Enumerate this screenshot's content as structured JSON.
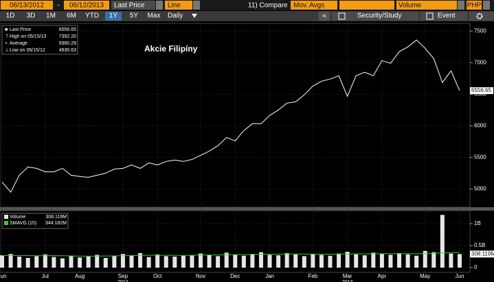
{
  "toolbar": {
    "start_date": "06/13/2012",
    "end_date": "06/12/2013",
    "field": "Last Price",
    "style": "Line",
    "compare": "11) Compare",
    "mov_avgs": "Mov. Avgs",
    "lower": "Volume",
    "currency": "PHP",
    "periods": [
      "1D",
      "3D",
      "1M",
      "6M",
      "YTD",
      "1Y",
      "5Y",
      "Max"
    ],
    "active_period_index": 5,
    "frequency": "Daily",
    "study": "Security/Study",
    "event": "Event"
  },
  "chart_data": [
    {
      "type": "line",
      "title": "Akcie Filipíny",
      "series": [
        {
          "name": "Last Price",
          "color": "#ffffff",
          "values": [
            5110,
            4950,
            5217,
            5348,
            5326,
            5272,
            5272,
            5326,
            5217,
            5196,
            5185,
            5217,
            5250,
            5315,
            5326,
            5380,
            5326,
            5413,
            5380,
            5435,
            5457,
            5435,
            5467,
            5533,
            5598,
            5685,
            5815,
            5761,
            5924,
            6033,
            6033,
            6163,
            6250,
            6359,
            6380,
            6489,
            6630,
            6707,
            6739,
            6793,
            6467,
            6793,
            6848,
            6793,
            7033,
            6989,
            7174,
            7250,
            7359,
            7228,
            7065,
            6685,
            6870,
            6556.65
          ]
        }
      ],
      "last_price": 6556.65,
      "stats": [
        {
          "label": "High on 05/15/13",
          "value": 7392.2,
          "value_label": "7392.20"
        },
        {
          "label": "Average",
          "value": 5960.29
        },
        {
          "label": "Low on 06/15/12",
          "value": 4930.63
        }
      ],
      "ylim": [
        4700,
        7590
      ],
      "yticks": [
        5000,
        5500,
        6000,
        6500,
        7000,
        7500
      ],
      "grid": true
    },
    {
      "type": "bar",
      "categories": [
        "Jun",
        null,
        null,
        null,
        null,
        "Jul",
        null,
        null,
        null,
        "Aug",
        null,
        null,
        null,
        null,
        "Sep",
        null,
        null,
        null,
        "Oct",
        null,
        null,
        null,
        null,
        "Nov",
        null,
        null,
        null,
        "Dec",
        null,
        null,
        null,
        "Jan",
        null,
        null,
        null,
        null,
        "Feb",
        null,
        null,
        null,
        "Mar",
        null,
        null,
        null,
        "Apr",
        null,
        null,
        null,
        null,
        "May",
        null,
        null,
        null,
        "Jun"
      ],
      "years": [
        "2012",
        "2013"
      ],
      "series": [
        {
          "name": "Volume",
          "color": "#e6e6e6",
          "values": [
            280000000,
            310000000,
            250000000,
            220000000,
            260000000,
            300000000,
            240000000,
            210000000,
            270000000,
            230000000,
            250000000,
            290000000,
            220000000,
            260000000,
            310000000,
            280000000,
            330000000,
            240000000,
            300000000,
            260000000,
            250000000,
            270000000,
            280000000,
            320000000,
            290000000,
            260000000,
            340000000,
            300000000,
            270000000,
            310000000,
            350000000,
            290000000,
            280000000,
            330000000,
            300000000,
            260000000,
            310000000,
            290000000,
            270000000,
            320000000,
            360000000,
            300000000,
            280000000,
            340000000,
            310000000,
            290000000,
            330000000,
            300000000,
            270000000,
            380000000,
            350000000,
            1200000000,
            320000000,
            308119000
          ]
        },
        {
          "name": "SMAVG (15)",
          "color": "#33cc33",
          "values": [
            270000000,
            275000000,
            278000000,
            272000000,
            268000000,
            270000000,
            272000000,
            268000000,
            265000000,
            262000000,
            260000000,
            262000000,
            264000000,
            266000000,
            270000000,
            274000000,
            278000000,
            280000000,
            282000000,
            280000000,
            279000000,
            278000000,
            280000000,
            285000000,
            288000000,
            288000000,
            292000000,
            295000000,
            295000000,
            298000000,
            302000000,
            304000000,
            305000000,
            308000000,
            310000000,
            308000000,
            306000000,
            306000000,
            305000000,
            306000000,
            310000000,
            312000000,
            312000000,
            314000000,
            316000000,
            315000000,
            315000000,
            316000000,
            314000000,
            320000000,
            325000000,
            335000000,
            340000000,
            344182000
          ]
        }
      ],
      "last_values": [
        {
          "value": 308119000,
          "label": "308.119M"
        },
        {
          "value": 344182000,
          "label": "344.182M"
        }
      ],
      "ylim": [
        0,
        1250000000
      ],
      "yticks": [
        0,
        {
          "value": 500000000,
          "label": "0.5B"
        },
        {
          "value": 1000000000,
          "label": "1B"
        }
      ],
      "grid": true
    }
  ]
}
